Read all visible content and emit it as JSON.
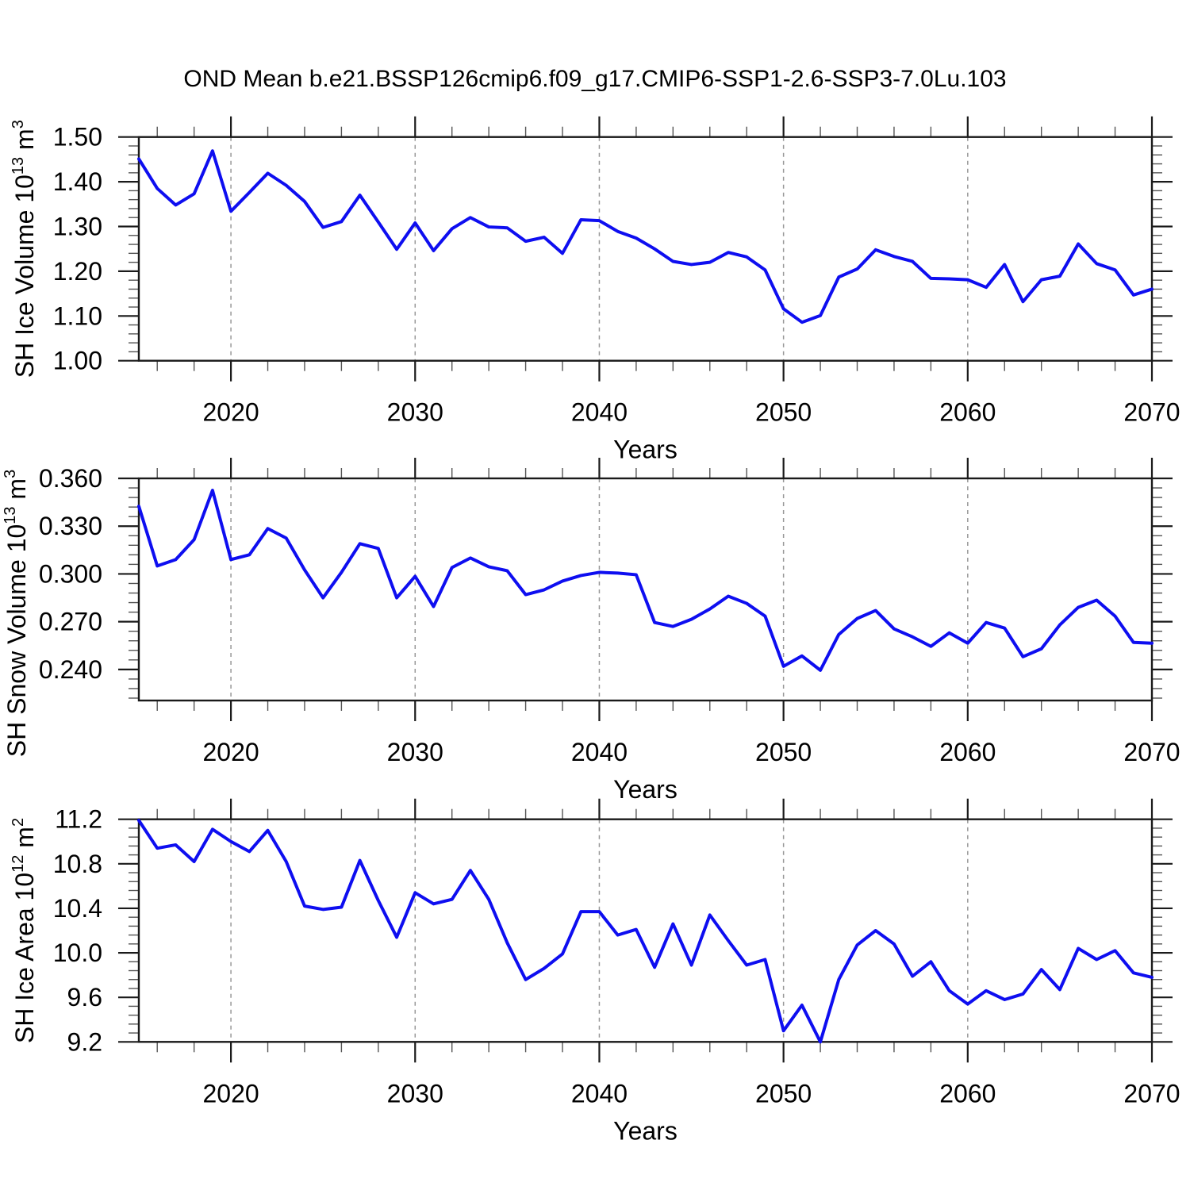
{
  "title": "OND Mean b.e21.BSSP126cmip6.f09_g17.CMIP6-SSP1-2.6-SSP3-7.0Lu.103",
  "style": {
    "line_color": "#0e0ef0",
    "frame_color": "#1a1a1a",
    "major_tick_color": "#1a1a1a",
    "minor_tick_color": "#555555",
    "grid_color": "#989898",
    "text_color": "#000000",
    "background": "#ffffff"
  },
  "chart_data": [
    {
      "type": "line",
      "name": "sh-ice-volume",
      "ylabel_parts": [
        {
          "t": "SH Ice Volume 10"
        },
        {
          "t": "13",
          "sup": true
        },
        {
          "t": " m"
        },
        {
          "t": "3",
          "sup": true
        }
      ],
      "xlabel": "Years",
      "xlim": [
        2015,
        2070
      ],
      "ylim": [
        1.0,
        1.5
      ],
      "xticks": [
        2020,
        2030,
        2040,
        2050,
        2060,
        2070
      ],
      "xtick_labels": [
        "2020",
        "2030",
        "2040",
        "2050",
        "2060",
        "2070"
      ],
      "x_minor_step": 2,
      "gridlines_x": [
        2020,
        2030,
        2040,
        2050,
        2060
      ],
      "yticks": [
        1.0,
        1.1,
        1.2,
        1.3,
        1.4,
        1.5
      ],
      "ytick_labels": [
        "1.00",
        "1.10",
        "1.20",
        "1.30",
        "1.40",
        "1.50"
      ],
      "y_minor_step": 0.02,
      "x_start": 2015,
      "x_step": 1,
      "values": [
        1.451,
        1.385,
        1.348,
        1.373,
        1.469,
        1.334,
        1.376,
        1.419,
        1.392,
        1.356,
        1.298,
        1.311,
        1.37,
        1.31,
        1.249,
        1.308,
        1.246,
        1.295,
        1.32,
        1.299,
        1.297,
        1.267,
        1.276,
        1.24,
        1.315,
        1.313,
        1.289,
        1.274,
        1.25,
        1.222,
        1.215,
        1.22,
        1.242,
        1.232,
        1.203,
        1.116,
        1.086,
        1.101,
        1.187,
        1.205,
        1.248,
        1.233,
        1.222,
        1.184,
        1.183,
        1.181,
        1.164,
        1.215,
        1.132,
        1.181,
        1.189,
        1.261,
        1.217,
        1.203,
        1.147,
        1.16
      ]
    },
    {
      "type": "line",
      "name": "sh-snow-volume",
      "ylabel_parts": [
        {
          "t": "SH Snow Volume 10"
        },
        {
          "t": "13",
          "sup": true
        },
        {
          "t": " m"
        },
        {
          "t": "3",
          "sup": true
        }
      ],
      "xlabel": "Years",
      "xlim": [
        2015,
        2070
      ],
      "ylim": [
        0.2205,
        0.36
      ],
      "xticks": [
        2020,
        2030,
        2040,
        2050,
        2060,
        2070
      ],
      "xtick_labels": [
        "2020",
        "2030",
        "2040",
        "2050",
        "2060",
        "2070"
      ],
      "x_minor_step": 2,
      "gridlines_x": [
        2020,
        2030,
        2040,
        2050,
        2060
      ],
      "yticks": [
        0.24,
        0.27,
        0.3,
        0.33,
        0.36
      ],
      "ytick_labels": [
        "0.240",
        "0.270",
        "0.300",
        "0.330",
        "0.360"
      ],
      "y_minor_step": 0.006,
      "x_start": 2015,
      "x_step": 1,
      "values": [
        0.3425,
        0.305,
        0.309,
        0.3215,
        0.3525,
        0.309,
        0.312,
        0.3285,
        0.3225,
        0.3025,
        0.285,
        0.301,
        0.319,
        0.316,
        0.285,
        0.2985,
        0.2795,
        0.304,
        0.31,
        0.3045,
        0.302,
        0.287,
        0.29,
        0.2955,
        0.299,
        0.301,
        0.3005,
        0.2995,
        0.2695,
        0.267,
        0.2715,
        0.278,
        0.286,
        0.2815,
        0.2735,
        0.242,
        0.2485,
        0.2395,
        0.262,
        0.272,
        0.277,
        0.2655,
        0.2605,
        0.2545,
        0.263,
        0.2565,
        0.2695,
        0.266,
        0.248,
        0.253,
        0.268,
        0.279,
        0.2835,
        0.2735,
        0.257,
        0.2565
      ]
    },
    {
      "type": "line",
      "name": "sh-ice-area",
      "ylabel_parts": [
        {
          "t": "SH Ice Area 10"
        },
        {
          "t": "12",
          "sup": true
        },
        {
          "t": " m"
        },
        {
          "t": "2",
          "sup": true
        }
      ],
      "xlabel": "Years",
      "xlim": [
        2015,
        2070
      ],
      "ylim": [
        9.2,
        11.2
      ],
      "xticks": [
        2020,
        2030,
        2040,
        2050,
        2060,
        2070
      ],
      "xtick_labels": [
        "2020",
        "2030",
        "2040",
        "2050",
        "2060",
        "2070"
      ],
      "x_minor_step": 2,
      "gridlines_x": [
        2020,
        2030,
        2040,
        2050,
        2060
      ],
      "yticks": [
        9.2,
        9.6,
        10.0,
        10.4,
        10.8,
        11.2
      ],
      "ytick_labels": [
        "9.2",
        "9.6",
        "10.0",
        "10.4",
        "10.8",
        "11.2"
      ],
      "y_minor_step": 0.08,
      "x_start": 2015,
      "x_step": 1,
      "values": [
        11.19,
        10.94,
        10.97,
        10.82,
        11.11,
        11.0,
        10.91,
        11.1,
        10.82,
        10.42,
        10.39,
        10.41,
        10.83,
        10.47,
        10.14,
        10.54,
        10.44,
        10.48,
        10.74,
        10.48,
        10.09,
        9.76,
        9.86,
        9.99,
        10.37,
        10.37,
        10.16,
        10.21,
        9.87,
        10.26,
        9.89,
        10.34,
        10.11,
        9.89,
        9.94,
        9.3,
        9.53,
        9.2,
        9.76,
        10.07,
        10.2,
        10.08,
        9.79,
        9.92,
        9.66,
        9.54,
        9.66,
        9.58,
        9.63,
        9.85,
        9.67,
        10.04,
        9.94,
        10.02,
        9.82,
        9.78
      ]
    }
  ]
}
